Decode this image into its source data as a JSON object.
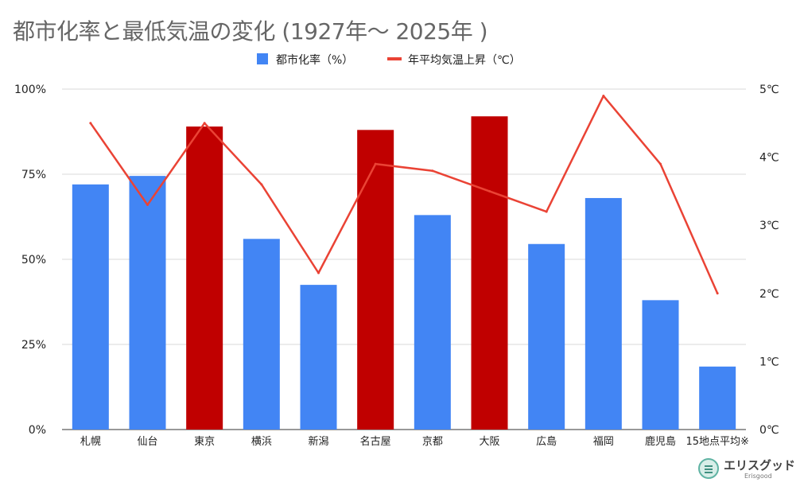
{
  "chart_data": {
    "type": "bar+line",
    "title": "都市化率と最低気温の変化 (1927年〜 2025年 )",
    "categories": [
      "札幌",
      "仙台",
      "東京",
      "横浜",
      "新潟",
      "名古屋",
      "京都",
      "大阪",
      "広島",
      "福岡",
      "鹿児島",
      "15地点平均※"
    ],
    "legend_position": "top-center",
    "series": [
      {
        "name": "都市化率（%）",
        "type": "bar",
        "axis": "left",
        "values": [
          72,
          74.5,
          89,
          56,
          42.5,
          88,
          63,
          92,
          54.5,
          68,
          38,
          18.5
        ],
        "color": "#4285f4",
        "highlight_color": "#c00000",
        "highlighted": [
          "東京",
          "名古屋",
          "大阪"
        ]
      },
      {
        "name": "年平均気温上昇（℃）",
        "type": "line",
        "axis": "right",
        "values": [
          4.5,
          3.3,
          4.5,
          3.6,
          2.3,
          3.9,
          3.8,
          3.5,
          3.2,
          4.9,
          3.9,
          2.0
        ],
        "color": "#ea4335"
      }
    ],
    "y_left": {
      "min": 0,
      "max": 100,
      "ticks": [
        "0%",
        "25%",
        "50%",
        "75%",
        "100%"
      ]
    },
    "y_right": {
      "min": 0,
      "max": 5,
      "ticks": [
        "0℃",
        "1℃",
        "2℃",
        "3℃",
        "4℃",
        "5℃"
      ]
    },
    "grid": true
  },
  "logo": {
    "name": "エリスグッド",
    "sub": "Erisgood"
  }
}
